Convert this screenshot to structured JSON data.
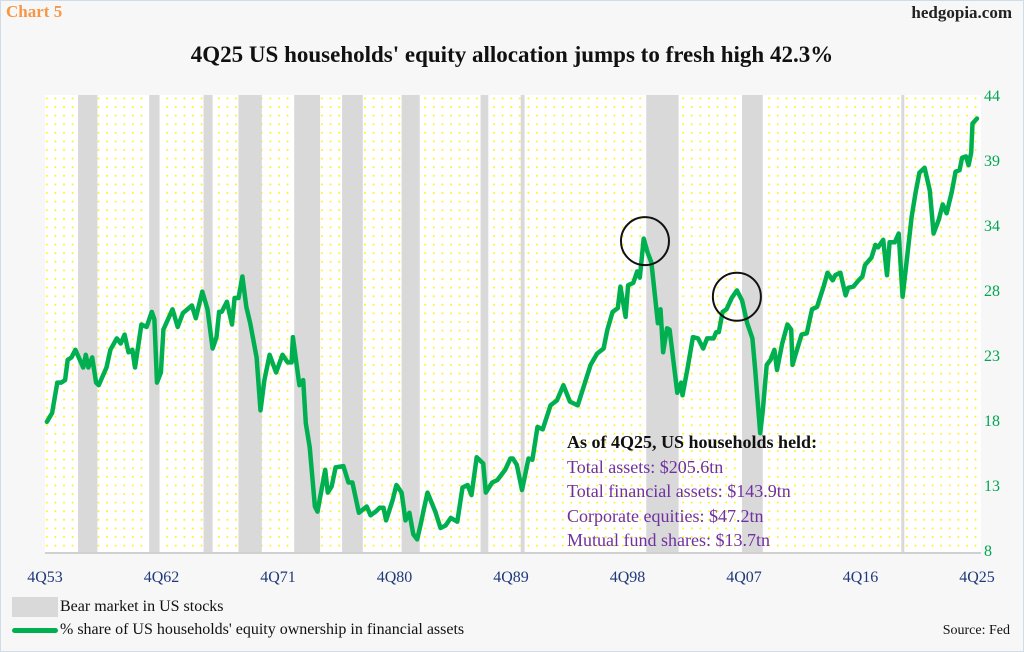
{
  "header": {
    "chart_label": "Chart 5",
    "site": "hedgopia.com"
  },
  "chart_data": {
    "type": "line",
    "title": "4Q25 US households' equity allocation jumps to fresh high 42.3%",
    "xlabel": "",
    "ylabel": "",
    "ylim": [
      8,
      44
    ],
    "xlim": [
      1953.75,
      2025.75
    ],
    "y_ticks": [
      "8",
      "13",
      "18",
      "23",
      "28",
      "34",
      "39",
      "44"
    ],
    "x_ticks": [
      {
        "label": "4Q53",
        "x": 1953.75
      },
      {
        "label": "4Q62",
        "x": 1962.75
      },
      {
        "label": "4Q71",
        "x": 1971.75
      },
      {
        "label": "4Q80",
        "x": 1980.75
      },
      {
        "label": "4Q89",
        "x": 1989.75
      },
      {
        "label": "4Q98",
        "x": 1998.75
      },
      {
        "label": "4Q07",
        "x": 2007.75
      },
      {
        "label": "4Q16",
        "x": 2016.75
      },
      {
        "label": "4Q25",
        "x": 2025.75
      }
    ],
    "grid": false,
    "series": [
      {
        "name": "% share of US households' equity ownership in financial assets",
        "color": "#00b050",
        "points": [
          [
            1953.9,
            18.3
          ],
          [
            1954.3,
            19.0
          ],
          [
            1954.7,
            21.4
          ],
          [
            1955.0,
            21.4
          ],
          [
            1955.3,
            21.6
          ],
          [
            1955.5,
            23.2
          ],
          [
            1955.8,
            23.4
          ],
          [
            1956.1,
            24.0
          ],
          [
            1956.7,
            22.6
          ],
          [
            1956.9,
            23.6
          ],
          [
            1957.1,
            22.6
          ],
          [
            1957.4,
            23.4
          ],
          [
            1957.7,
            21.4
          ],
          [
            1957.9,
            21.2
          ],
          [
            1958.5,
            22.6
          ],
          [
            1958.8,
            24.0
          ],
          [
            1959.3,
            24.9
          ],
          [
            1959.6,
            24.5
          ],
          [
            1959.9,
            25.2
          ],
          [
            1960.2,
            23.8
          ],
          [
            1960.5,
            24.0
          ],
          [
            1960.7,
            22.6
          ],
          [
            1961.2,
            26.0
          ],
          [
            1961.6,
            25.8
          ],
          [
            1962.0,
            27.0
          ],
          [
            1962.2,
            26.4
          ],
          [
            1962.4,
            21.4
          ],
          [
            1962.7,
            22.2
          ],
          [
            1962.9,
            25.6
          ],
          [
            1963.6,
            27.2
          ],
          [
            1964.0,
            25.8
          ],
          [
            1964.4,
            26.9
          ],
          [
            1965.1,
            27.5
          ],
          [
            1965.4,
            26.5
          ],
          [
            1965.9,
            28.6
          ],
          [
            1966.3,
            27.2
          ],
          [
            1966.7,
            24.1
          ],
          [
            1967.0,
            25.0
          ],
          [
            1967.2,
            27.0
          ],
          [
            1967.4,
            27.0
          ],
          [
            1967.8,
            27.8
          ],
          [
            1968.2,
            26.0
          ],
          [
            1968.4,
            28.1
          ],
          [
            1968.7,
            28.1
          ],
          [
            1969.0,
            29.8
          ],
          [
            1969.3,
            27.4
          ],
          [
            1969.6,
            26.1
          ],
          [
            1970.1,
            23.4
          ],
          [
            1970.4,
            19.2
          ],
          [
            1970.7,
            21.6
          ],
          [
            1971.1,
            23.6
          ],
          [
            1971.6,
            22.2
          ],
          [
            1972.1,
            23.6
          ],
          [
            1972.5,
            23.0
          ],
          [
            1972.8,
            23.0
          ],
          [
            1972.9,
            25.0
          ],
          [
            1973.4,
            21.2
          ],
          [
            1973.7,
            21.6
          ],
          [
            1973.9,
            18.2
          ],
          [
            1974.2,
            16.3
          ],
          [
            1974.6,
            11.6
          ],
          [
            1974.8,
            11.2
          ],
          [
            1975.4,
            14.5
          ],
          [
            1975.6,
            12.7
          ],
          [
            1975.9,
            13.2
          ],
          [
            1976.2,
            14.7
          ],
          [
            1976.8,
            14.8
          ],
          [
            1977.2,
            13.5
          ],
          [
            1977.5,
            13.5
          ],
          [
            1978.0,
            11.1
          ],
          [
            1978.6,
            11.6
          ],
          [
            1978.9,
            10.9
          ],
          [
            1979.3,
            11.2
          ],
          [
            1979.6,
            11.5
          ],
          [
            1979.9,
            11.5
          ],
          [
            1980.1,
            10.5
          ],
          [
            1980.6,
            12.1
          ],
          [
            1980.9,
            13.3
          ],
          [
            1981.3,
            12.7
          ],
          [
            1981.6,
            10.5
          ],
          [
            1981.9,
            11.1
          ],
          [
            1982.2,
            9.4
          ],
          [
            1982.5,
            9.0
          ],
          [
            1982.8,
            10.3
          ],
          [
            1983.0,
            11.3
          ],
          [
            1983.3,
            12.7
          ],
          [
            1983.9,
            11.2
          ],
          [
            1984.3,
            9.9
          ],
          [
            1984.7,
            10.1
          ],
          [
            1985.1,
            10.7
          ],
          [
            1985.6,
            10.4
          ],
          [
            1986.0,
            13.1
          ],
          [
            1986.4,
            13.3
          ],
          [
            1986.7,
            12.5
          ],
          [
            1987.1,
            15.5
          ],
          [
            1987.6,
            15.0
          ],
          [
            1987.8,
            12.7
          ],
          [
            1988.3,
            13.5
          ],
          [
            1988.7,
            13.7
          ],
          [
            1989.0,
            14.1
          ],
          [
            1989.3,
            14.5
          ],
          [
            1989.7,
            15.4
          ],
          [
            1989.9,
            15.4
          ],
          [
            1990.2,
            14.9
          ],
          [
            1990.6,
            12.9
          ],
          [
            1991.1,
            15.4
          ],
          [
            1991.4,
            15.3
          ],
          [
            1991.8,
            17.9
          ],
          [
            1992.2,
            17.7
          ],
          [
            1992.8,
            19.6
          ],
          [
            1993.3,
            20.0
          ],
          [
            1993.8,
            21.2
          ],
          [
            1994.3,
            19.9
          ],
          [
            1994.9,
            19.6
          ],
          [
            1995.9,
            22.8
          ],
          [
            1996.4,
            23.7
          ],
          [
            1996.9,
            24.1
          ],
          [
            1997.2,
            25.6
          ],
          [
            1997.6,
            27.0
          ],
          [
            1998.0,
            27.3
          ],
          [
            1998.2,
            29.0
          ],
          [
            1998.6,
            26.6
          ],
          [
            1998.8,
            29.1
          ],
          [
            1999.2,
            29.3
          ],
          [
            1999.5,
            30.2
          ],
          [
            1999.7,
            29.7
          ],
          [
            2000.0,
            32.8
          ],
          [
            2000.3,
            31.7
          ],
          [
            2000.6,
            30.9
          ],
          [
            2001.1,
            26.1
          ],
          [
            2001.3,
            27.2
          ],
          [
            2001.5,
            23.8
          ],
          [
            2001.8,
            25.7
          ],
          [
            2002.0,
            25.6
          ],
          [
            2002.6,
            20.6
          ],
          [
            2002.9,
            21.4
          ],
          [
            2003.0,
            20.4
          ],
          [
            2003.4,
            22.6
          ],
          [
            2003.8,
            25.0
          ],
          [
            2004.2,
            24.9
          ],
          [
            2004.6,
            24.1
          ],
          [
            2004.9,
            24.9
          ],
          [
            2005.4,
            24.9
          ],
          [
            2005.6,
            25.4
          ],
          [
            2005.8,
            25.4
          ],
          [
            2006.1,
            27.0
          ],
          [
            2006.4,
            27.2
          ],
          [
            2006.8,
            28.1
          ],
          [
            2007.2,
            28.7
          ],
          [
            2007.6,
            27.9
          ],
          [
            2008.0,
            26.1
          ],
          [
            2008.4,
            24.9
          ],
          [
            2008.6,
            22.6
          ],
          [
            2009.0,
            17.4
          ],
          [
            2009.2,
            19.2
          ],
          [
            2009.5,
            22.8
          ],
          [
            2009.8,
            23.2
          ],
          [
            2010.1,
            24.0
          ],
          [
            2010.3,
            22.4
          ],
          [
            2010.7,
            24.5
          ],
          [
            2011.1,
            26.0
          ],
          [
            2011.4,
            25.6
          ],
          [
            2011.5,
            22.8
          ],
          [
            2011.9,
            24.2
          ],
          [
            2012.2,
            25.2
          ],
          [
            2012.6,
            25.3
          ],
          [
            2013.0,
            27.2
          ],
          [
            2013.4,
            27.4
          ],
          [
            2013.9,
            29.0
          ],
          [
            2014.2,
            30.1
          ],
          [
            2014.6,
            29.5
          ],
          [
            2014.8,
            29.9
          ],
          [
            2015.2,
            30.1
          ],
          [
            2015.6,
            28.3
          ],
          [
            2015.8,
            28.9
          ],
          [
            2016.2,
            29.0
          ],
          [
            2016.6,
            29.5
          ],
          [
            2016.9,
            29.8
          ],
          [
            2017.1,
            30.7
          ],
          [
            2017.6,
            31.3
          ],
          [
            2017.9,
            32.3
          ],
          [
            2018.1,
            32.1
          ],
          [
            2018.5,
            32.7
          ],
          [
            2018.8,
            29.9
          ],
          [
            2019.0,
            32.5
          ],
          [
            2019.4,
            32.5
          ],
          [
            2019.7,
            33.2
          ],
          [
            2020.0,
            28.2
          ],
          [
            2020.3,
            30.9
          ],
          [
            2020.7,
            34.5
          ],
          [
            2021.0,
            36.4
          ],
          [
            2021.3,
            38.0
          ],
          [
            2021.7,
            38.4
          ],
          [
            2022.1,
            36.6
          ],
          [
            2022.4,
            33.2
          ],
          [
            2022.8,
            34.3
          ],
          [
            2023.1,
            35.5
          ],
          [
            2023.4,
            34.8
          ],
          [
            2023.8,
            36.5
          ],
          [
            2024.1,
            38.1
          ],
          [
            2024.4,
            38.2
          ],
          [
            2024.6,
            39.2
          ],
          [
            2024.9,
            39.3
          ],
          [
            2025.1,
            38.6
          ],
          [
            2025.3,
            39.6
          ],
          [
            2025.4,
            41.9
          ],
          [
            2025.75,
            42.3
          ]
        ]
      }
    ],
    "bear_markets": [
      [
        1956.3,
        1957.8
      ],
      [
        1961.8,
        1962.6
      ],
      [
        1966.0,
        1966.7
      ],
      [
        1968.7,
        1970.5
      ],
      [
        1973.0,
        1975.0
      ],
      [
        1976.7,
        1978.3
      ],
      [
        1981.3,
        1982.7
      ],
      [
        1987.4,
        1988.0
      ],
      [
        1990.5,
        1990.8
      ],
      [
        2000.2,
        2002.7
      ],
      [
        2007.6,
        2009.2
      ],
      [
        2019.9,
        2020.1
      ]
    ],
    "circled_peaks": [
      [
        2000.1,
        32.6
      ],
      [
        2007.2,
        28.2
      ]
    ],
    "legend": {
      "position": "bottom-left",
      "bear_label": "Bear market in US stocks",
      "line_label": "% share of US households' equity ownership in financial assets"
    },
    "annotation": {
      "heading": "As of 4Q25, US households held:",
      "items": [
        "Total assets: $205.6tn",
        "Total financial assets: $143.9tn",
        "Corporate equities: $47.2tn",
        "Mutual fund shares: $13.7tn"
      ]
    },
    "source": "Source: Fed"
  },
  "colors": {
    "bear": "#d9d9d9",
    "line": "#00b050",
    "ytick": "#00a651",
    "xtick": "#1f3a7a",
    "annot": "#7030a0",
    "dots": "#ffee00"
  }
}
